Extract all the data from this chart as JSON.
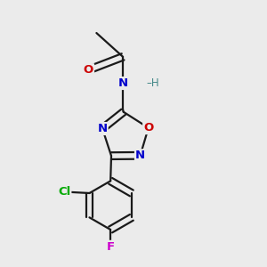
{
  "bg_color": "#ebebeb",
  "bond_color": "#1a1a1a",
  "bond_width": 1.6,
  "atom_colors": {
    "O": "#cc0000",
    "N": "#0000cc",
    "Cl": "#00aa00",
    "F": "#cc00cc",
    "H": "#448888"
  },
  "figsize": [
    3.0,
    3.0
  ],
  "dpi": 100
}
